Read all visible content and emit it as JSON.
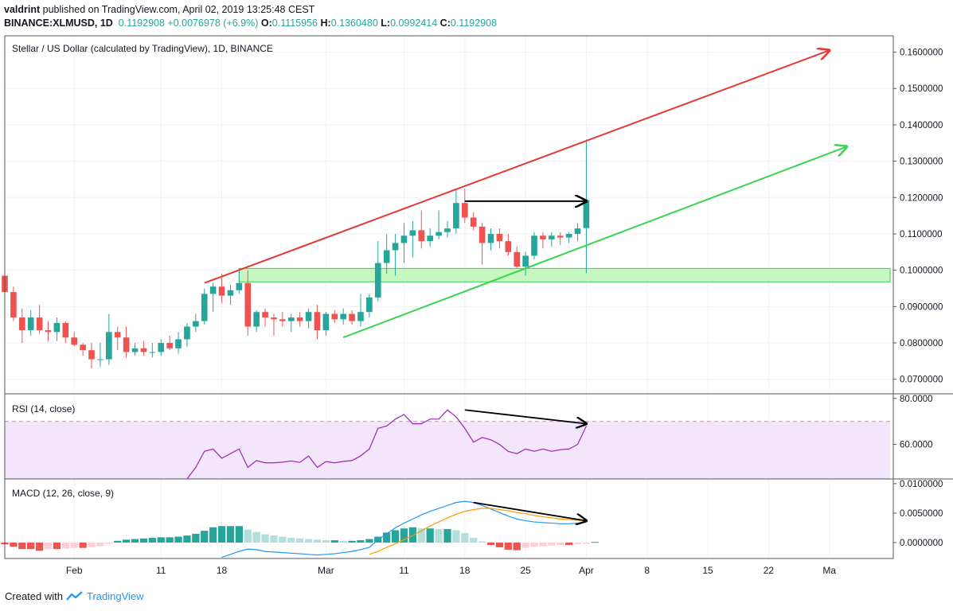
{
  "header": {
    "author": "valdrint",
    "published_text": "published on TradingView.com, April 02, 2019 13:25:48 CEST",
    "symbol": "BINANCE:XLMUSD, 1D",
    "last": "0.1192908",
    "change": "+0.0076978 (+6.9%)",
    "o_label": "O:",
    "o_value": "0.1115956",
    "h_label": "H:",
    "h_value": "0.1360480",
    "l_label": "L:",
    "l_value": "0.0992414",
    "c_label": "C:",
    "c_value": "0.1192908"
  },
  "footer": {
    "created_with": "Created with",
    "brand": "TradingView"
  },
  "colors": {
    "up": "#26a69a",
    "down": "#ef5350",
    "upper_line": "#e53935",
    "lower_line": "#39d353",
    "zone_fill": "#b9f5b0",
    "zone_stroke": "#39d353",
    "rsi_band": "#f3e5fb",
    "rsi_line": "#9c27b0",
    "macd_line": "#2196f3",
    "signal_line": "#ff9800",
    "hist_up_strong": "#26a69a",
    "hist_up_weak": "#b2dfdb",
    "hist_down_strong": "#ef5350",
    "hist_down_weak": "#ffcdd2"
  },
  "chart_data": {
    "type": "candlestick",
    "title": "Stellar / US Dollar (calculated by TradingView), 1D, BINANCE",
    "ylim": [
      0.066,
      0.1645
    ],
    "y_ticks": [
      0.07,
      0.08,
      0.09,
      0.1,
      0.11,
      0.12,
      0.13,
      0.14,
      0.15,
      0.16
    ],
    "y_tick_labels": [
      "0.0700000",
      "0.0800000",
      "0.0900000",
      "0.1000000",
      "0.1100000",
      "0.1200000",
      "0.1300000",
      "0.1400000",
      "0.1500000",
      "0.1600000"
    ],
    "x_day_range": [
      -4,
      98
    ],
    "x_ticks": [
      {
        "day": 4,
        "label": "Feb"
      },
      {
        "day": 14,
        "label": "11"
      },
      {
        "day": 21,
        "label": "18"
      },
      {
        "day": 33,
        "label": "Mar"
      },
      {
        "day": 42,
        "label": "11"
      },
      {
        "day": 49,
        "label": "18"
      },
      {
        "day": 56,
        "label": "25"
      },
      {
        "day": 63,
        "label": "Apr"
      },
      {
        "day": 70,
        "label": "8"
      },
      {
        "day": 77,
        "label": "15"
      },
      {
        "day": 84,
        "label": "22"
      },
      {
        "day": 91,
        "label": "Ma"
      }
    ],
    "ohlc": [
      {
        "d": -4,
        "o": 0.0985,
        "h": 0.0988,
        "l": 0.0925,
        "c": 0.094
      },
      {
        "d": -3,
        "o": 0.094,
        "h": 0.0955,
        "l": 0.086,
        "c": 0.087
      },
      {
        "d": -2,
        "o": 0.087,
        "h": 0.0895,
        "l": 0.08,
        "c": 0.0835
      },
      {
        "d": -1,
        "o": 0.0835,
        "h": 0.089,
        "l": 0.082,
        "c": 0.087
      },
      {
        "d": 0,
        "o": 0.087,
        "h": 0.0905,
        "l": 0.0825,
        "c": 0.0835
      },
      {
        "d": 1,
        "o": 0.0835,
        "h": 0.086,
        "l": 0.0805,
        "c": 0.083
      },
      {
        "d": 2,
        "o": 0.083,
        "h": 0.087,
        "l": 0.0805,
        "c": 0.0855
      },
      {
        "d": 3,
        "o": 0.0855,
        "h": 0.086,
        "l": 0.08,
        "c": 0.0815
      },
      {
        "d": 4,
        "o": 0.0815,
        "h": 0.083,
        "l": 0.079,
        "c": 0.0795
      },
      {
        "d": 5,
        "o": 0.0795,
        "h": 0.08,
        "l": 0.0765,
        "c": 0.078
      },
      {
        "d": 6,
        "o": 0.078,
        "h": 0.08,
        "l": 0.073,
        "c": 0.0755
      },
      {
        "d": 7,
        "o": 0.0755,
        "h": 0.08,
        "l": 0.0735,
        "c": 0.0755
      },
      {
        "d": 8,
        "o": 0.0755,
        "h": 0.088,
        "l": 0.074,
        "c": 0.083
      },
      {
        "d": 9,
        "o": 0.083,
        "h": 0.0845,
        "l": 0.078,
        "c": 0.0815
      },
      {
        "d": 10,
        "o": 0.0815,
        "h": 0.0845,
        "l": 0.076,
        "c": 0.0775
      },
      {
        "d": 11,
        "o": 0.0775,
        "h": 0.08,
        "l": 0.0765,
        "c": 0.0785
      },
      {
        "d": 12,
        "o": 0.0785,
        "h": 0.0805,
        "l": 0.0765,
        "c": 0.0775
      },
      {
        "d": 13,
        "o": 0.0775,
        "h": 0.08,
        "l": 0.076,
        "c": 0.0775
      },
      {
        "d": 14,
        "o": 0.0775,
        "h": 0.081,
        "l": 0.0765,
        "c": 0.08
      },
      {
        "d": 15,
        "o": 0.08,
        "h": 0.082,
        "l": 0.078,
        "c": 0.0785
      },
      {
        "d": 16,
        "o": 0.0785,
        "h": 0.083,
        "l": 0.077,
        "c": 0.081
      },
      {
        "d": 17,
        "o": 0.081,
        "h": 0.0855,
        "l": 0.079,
        "c": 0.0845
      },
      {
        "d": 18,
        "o": 0.0845,
        "h": 0.088,
        "l": 0.083,
        "c": 0.086
      },
      {
        "d": 19,
        "o": 0.086,
        "h": 0.095,
        "l": 0.085,
        "c": 0.0935
      },
      {
        "d": 20,
        "o": 0.0935,
        "h": 0.0965,
        "l": 0.0885,
        "c": 0.0955
      },
      {
        "d": 21,
        "o": 0.0955,
        "h": 0.099,
        "l": 0.091,
        "c": 0.093
      },
      {
        "d": 22,
        "o": 0.093,
        "h": 0.096,
        "l": 0.0905,
        "c": 0.0945
      },
      {
        "d": 23,
        "o": 0.0945,
        "h": 0.1005,
        "l": 0.0935,
        "c": 0.0965
      },
      {
        "d": 24,
        "o": 0.0965,
        "h": 0.1,
        "l": 0.082,
        "c": 0.0845
      },
      {
        "d": 25,
        "o": 0.0845,
        "h": 0.089,
        "l": 0.083,
        "c": 0.0885
      },
      {
        "d": 26,
        "o": 0.0885,
        "h": 0.0895,
        "l": 0.0845,
        "c": 0.087
      },
      {
        "d": 27,
        "o": 0.087,
        "h": 0.088,
        "l": 0.082,
        "c": 0.0865
      },
      {
        "d": 28,
        "o": 0.0865,
        "h": 0.0885,
        "l": 0.0845,
        "c": 0.086
      },
      {
        "d": 29,
        "o": 0.086,
        "h": 0.088,
        "l": 0.083,
        "c": 0.087
      },
      {
        "d": 30,
        "o": 0.087,
        "h": 0.0885,
        "l": 0.0845,
        "c": 0.086
      },
      {
        "d": 31,
        "o": 0.086,
        "h": 0.0895,
        "l": 0.084,
        "c": 0.0885
      },
      {
        "d": 32,
        "o": 0.0885,
        "h": 0.0905,
        "l": 0.081,
        "c": 0.0835
      },
      {
        "d": 33,
        "o": 0.0835,
        "h": 0.0885,
        "l": 0.082,
        "c": 0.088
      },
      {
        "d": 34,
        "o": 0.088,
        "h": 0.089,
        "l": 0.0855,
        "c": 0.0865
      },
      {
        "d": 35,
        "o": 0.0865,
        "h": 0.0895,
        "l": 0.085,
        "c": 0.088
      },
      {
        "d": 36,
        "o": 0.088,
        "h": 0.089,
        "l": 0.085,
        "c": 0.086
      },
      {
        "d": 37,
        "o": 0.086,
        "h": 0.0935,
        "l": 0.0845,
        "c": 0.0885
      },
      {
        "d": 38,
        "o": 0.0885,
        "h": 0.0935,
        "l": 0.087,
        "c": 0.0925
      },
      {
        "d": 39,
        "o": 0.0925,
        "h": 0.108,
        "l": 0.0915,
        "c": 0.102
      },
      {
        "d": 40,
        "o": 0.102,
        "h": 0.11,
        "l": 0.099,
        "c": 0.1055
      },
      {
        "d": 41,
        "o": 0.1055,
        "h": 0.11,
        "l": 0.0985,
        "c": 0.1075
      },
      {
        "d": 42,
        "o": 0.1075,
        "h": 0.113,
        "l": 0.102,
        "c": 0.1095
      },
      {
        "d": 43,
        "o": 0.1095,
        "h": 0.1135,
        "l": 0.1035,
        "c": 0.111
      },
      {
        "d": 44,
        "o": 0.111,
        "h": 0.1165,
        "l": 0.106,
        "c": 0.108
      },
      {
        "d": 45,
        "o": 0.108,
        "h": 0.1115,
        "l": 0.1065,
        "c": 0.1095
      },
      {
        "d": 46,
        "o": 0.1095,
        "h": 0.1165,
        "l": 0.1085,
        "c": 0.1105
      },
      {
        "d": 47,
        "o": 0.1105,
        "h": 0.1135,
        "l": 0.109,
        "c": 0.1115
      },
      {
        "d": 48,
        "o": 0.1115,
        "h": 0.1225,
        "l": 0.11,
        "c": 0.1185
      },
      {
        "d": 49,
        "o": 0.1185,
        "h": 0.1225,
        "l": 0.113,
        "c": 0.1145
      },
      {
        "d": 50,
        "o": 0.1145,
        "h": 0.116,
        "l": 0.111,
        "c": 0.112
      },
      {
        "d": 51,
        "o": 0.112,
        "h": 0.113,
        "l": 0.1015,
        "c": 0.1075
      },
      {
        "d": 52,
        "o": 0.1075,
        "h": 0.1115,
        "l": 0.1055,
        "c": 0.11
      },
      {
        "d": 53,
        "o": 0.11,
        "h": 0.1115,
        "l": 0.106,
        "c": 0.108
      },
      {
        "d": 54,
        "o": 0.108,
        "h": 0.11,
        "l": 0.104,
        "c": 0.105
      },
      {
        "d": 55,
        "o": 0.105,
        "h": 0.1065,
        "l": 0.1005,
        "c": 0.101
      },
      {
        "d": 56,
        "o": 0.101,
        "h": 0.105,
        "l": 0.0985,
        "c": 0.104
      },
      {
        "d": 57,
        "o": 0.104,
        "h": 0.1105,
        "l": 0.103,
        "c": 0.1095
      },
      {
        "d": 58,
        "o": 0.1095,
        "h": 0.1105,
        "l": 0.106,
        "c": 0.1085
      },
      {
        "d": 59,
        "o": 0.1085,
        "h": 0.1105,
        "l": 0.1065,
        "c": 0.1095
      },
      {
        "d": 60,
        "o": 0.1095,
        "h": 0.1105,
        "l": 0.107,
        "c": 0.109
      },
      {
        "d": 61,
        "o": 0.109,
        "h": 0.1105,
        "l": 0.1075,
        "c": 0.11
      },
      {
        "d": 62,
        "o": 0.11,
        "h": 0.113,
        "l": 0.108,
        "c": 0.1115
      },
      {
        "d": 63,
        "o": 0.1116,
        "h": 0.136,
        "l": 0.0992,
        "c": 0.1193
      }
    ],
    "support_zone": {
      "x0_day": 23,
      "x1_day": 98,
      "y0": 0.0968,
      "y1": 0.1005
    },
    "trend_lines": [
      {
        "name": "upper channel",
        "color": "#e53935",
        "from": {
          "d": 19,
          "v": 0.0965
        },
        "to": {
          "d": 91,
          "v": 0.1605
        },
        "arrow": true
      },
      {
        "name": "lower channel",
        "color": "#39d353",
        "from": {
          "d": 35,
          "v": 0.0815
        },
        "to": {
          "d": 93,
          "v": 0.134
        },
        "arrow": true
      },
      {
        "name": "equal-high arrow",
        "color": "#000000",
        "from": {
          "d": 49,
          "v": 0.119
        },
        "to": {
          "d": 63,
          "v": 0.119
        },
        "arrow": true
      }
    ],
    "rsi": {
      "label": "RSI (14, close)",
      "ylim": [
        45,
        82
      ],
      "band": [
        45,
        70
      ],
      "y_ticks": [
        60,
        80
      ],
      "y_tick_labels": [
        "60.0000",
        "80.0000"
      ],
      "days": [
        17,
        18,
        19,
        20,
        21,
        22,
        23,
        24,
        25,
        26,
        27,
        28,
        29,
        30,
        31,
        32,
        33,
        34,
        35,
        36,
        37,
        38,
        39,
        40,
        41,
        42,
        43,
        44,
        45,
        46,
        47,
        48,
        49,
        50,
        51,
        52,
        53,
        54,
        55,
        56,
        57,
        58,
        59,
        60,
        61,
        62,
        63
      ],
      "values": [
        45,
        50,
        57,
        58,
        54,
        56,
        58,
        50,
        53,
        52,
        52,
        52.3,
        52.8,
        52.2,
        55,
        50,
        52.5,
        52,
        52.6,
        53,
        55,
        58,
        67,
        68,
        71,
        73,
        69,
        69,
        71,
        71,
        75,
        72,
        67,
        61,
        63,
        62,
        60,
        57,
        56,
        58,
        57,
        58,
        57,
        57.7,
        58,
        60,
        68
      ],
      "divergence_arrow": {
        "from": {
          "d": 49,
          "v": 75
        },
        "to": {
          "d": 63,
          "v": 69
        }
      }
    },
    "macd": {
      "label": "MACD (12, 26, close, 9)",
      "ylim": [
        -0.0027,
        0.0108
      ],
      "y_ticks": [
        0.0,
        0.005,
        0.01
      ],
      "y_tick_labels": [
        "0.0000000",
        "0.0050000",
        "0.0100000"
      ],
      "hist_days": [
        -4,
        -3,
        -2,
        -1,
        0,
        1,
        2,
        3,
        4,
        5,
        6,
        7,
        8,
        9,
        10,
        11,
        12,
        13,
        14,
        15,
        16,
        17,
        18,
        19,
        20,
        21,
        22,
        23,
        24,
        25,
        26,
        27,
        28,
        29,
        30,
        31,
        32,
        33,
        34,
        35,
        36,
        37,
        38,
        39,
        40,
        41,
        42,
        43,
        44,
        45,
        46,
        47,
        48,
        49,
        50,
        51,
        52,
        53,
        54,
        55,
        56,
        57,
        58,
        59,
        60,
        61,
        62,
        63,
        64
      ],
      "hist": [
        -0.0003,
        -0.0007,
        -0.0011,
        -0.0011,
        -0.0014,
        -0.0011,
        -0.0011,
        -0.001,
        -0.0009,
        -0.0009,
        -0.0008,
        -0.0006,
        -0.0002,
        0.0003,
        0.0005,
        0.0006,
        0.0007,
        0.0008,
        0.0009,
        0.0009,
        0.001,
        0.0012,
        0.0015,
        0.002,
        0.0026,
        0.0028,
        0.0028,
        0.0028,
        0.0022,
        0.0018,
        0.0014,
        0.0012,
        0.001,
        0.0008,
        0.0007,
        0.0006,
        0.0005,
        0.0004,
        0.0004,
        0.0003,
        0.0003,
        0.0004,
        0.0006,
        0.001,
        0.0017,
        0.0021,
        0.0024,
        0.0026,
        0.0024,
        0.0024,
        0.0023,
        0.0023,
        0.0021,
        0.0016,
        0.0008,
        0.0002,
        -0.0004,
        -0.0008,
        -0.0012,
        -0.0013,
        -0.0009,
        -0.0007,
        -0.0006,
        -0.0005,
        -0.0004,
        -0.0004,
        -0.0003,
        -0.0002,
        0.0001
      ],
      "macd_days": [
        21,
        22,
        23,
        24,
        25,
        26,
        27,
        28,
        29,
        30,
        31,
        32,
        33,
        34,
        35,
        36,
        37,
        38,
        39,
        40,
        41,
        42,
        43,
        44,
        45,
        46,
        47,
        48,
        49,
        50,
        51,
        52,
        53,
        54,
        55,
        56,
        57,
        58,
        59,
        60,
        61,
        62,
        63
      ],
      "macd_line": [
        -0.0025,
        -0.002,
        -0.0015,
        -0.0011,
        -0.0012,
        -0.0015,
        -0.0016,
        -0.0017,
        -0.0018,
        -0.0019,
        -0.002,
        -0.0021,
        -0.002,
        -0.0019,
        -0.0017,
        -0.0015,
        -0.0012,
        -0.0008,
        0.0005,
        0.0015,
        0.0025,
        0.0033,
        0.004,
        0.0047,
        0.0053,
        0.0058,
        0.0063,
        0.0068,
        0.007,
        0.0068,
        0.0063,
        0.0057,
        0.0051,
        0.0045,
        0.004,
        0.0037,
        0.0035,
        0.0034,
        0.0033,
        0.0032,
        0.0032,
        0.0033,
        0.0035
      ],
      "signal_days": [
        38,
        39,
        40,
        41,
        42,
        43,
        44,
        45,
        46,
        47,
        48,
        49,
        50,
        51,
        52,
        53,
        54,
        55,
        56,
        57,
        58,
        59,
        60,
        61,
        62,
        63
      ],
      "signal_line": [
        -0.002,
        -0.0015,
        -0.0008,
        -0.0002,
        0.0005,
        0.0012,
        0.002,
        0.0028,
        0.0035,
        0.0042,
        0.0048,
        0.0053,
        0.0056,
        0.0058,
        0.0058,
        0.0056,
        0.0054,
        0.0051,
        0.0049,
        0.0046,
        0.0044,
        0.0042,
        0.004,
        0.0039,
        0.0038,
        0.0037
      ],
      "divergence_arrow": {
        "from": {
          "d": 50,
          "v": 0.0068
        },
        "to": {
          "d": 63,
          "v": 0.0037
        }
      }
    }
  }
}
